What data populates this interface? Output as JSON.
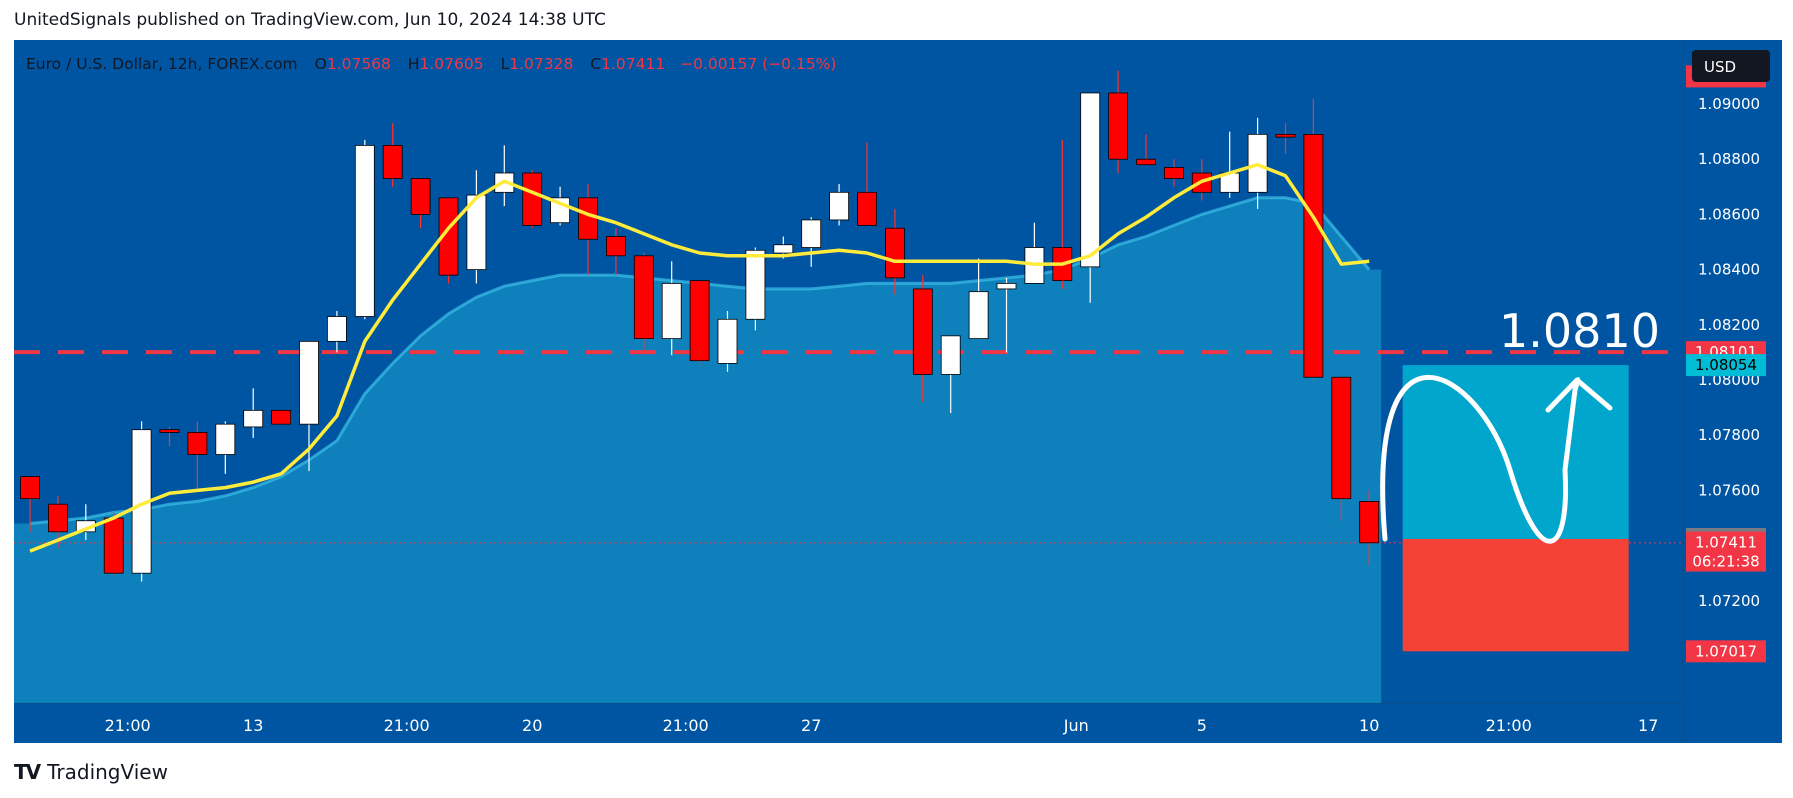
{
  "header": {
    "byline": "UnitedSignals published on TradingView.com, Jun 10, 2024 14:38 UTC"
  },
  "footer": {
    "logo_mark": "TV",
    "brand": "TradingView"
  },
  "legend": {
    "symbol": "Euro / U.S. Dollar, 12h, FOREX.com",
    "o_label": "O",
    "o_value": "1.07568",
    "h_label": "H",
    "h_value": "1.07605",
    "l_label": "L",
    "l_value": "1.07328",
    "c_label": "C",
    "c_value": "1.07411",
    "change": "−0.00157 (−0.15%)"
  },
  "currency_button": "USD",
  "annotation": {
    "target_text": "1.0810"
  },
  "price_tags": {
    "p1": "1.08101",
    "p2": "1.08054",
    "p3": "1.07424",
    "p4": "1.07411",
    "countdown": "06:21:38",
    "p5": "1.07017"
  },
  "colors": {
    "background": "#0055a3",
    "bull": "#ffffff",
    "bear": "#ff0000",
    "ma_line": "#ffeb3b",
    "band_fill": "#1aa6d1",
    "target_box": "#00a6cc",
    "stop_box": "#f44336",
    "dashed_level": "#f23645"
  },
  "chart_data": {
    "type": "candlestick",
    "y_axis": {
      "range": [
        1.0696,
        1.0918
      ],
      "ticks": [
        "1.09000",
        "1.08800",
        "1.08600",
        "1.08400",
        "1.08200",
        "1.08000",
        "1.07800",
        "1.07600",
        "1.07200"
      ]
    },
    "x_axis": {
      "ticks": [
        {
          "label": "21:00",
          "bar": 3.5
        },
        {
          "label": "13",
          "bar": 8
        },
        {
          "label": "21:00",
          "bar": 13.5
        },
        {
          "label": "20",
          "bar": 18
        },
        {
          "label": "21:00",
          "bar": 23.5
        },
        {
          "label": "27",
          "bar": 28
        },
        {
          "label": "Jun",
          "bar": 37.5
        },
        {
          "label": "5",
          "bar": 42
        },
        {
          "label": "10",
          "bar": 48
        },
        {
          "label": "21:00",
          "bar": 53
        },
        {
          "label": "17",
          "bar": 58
        }
      ]
    },
    "candles": [
      {
        "o": 1.0765,
        "h": 1.0765,
        "l": 1.0745,
        "c": 1.0757
      },
      {
        "o": 1.0755,
        "h": 1.0758,
        "l": 1.0739,
        "c": 1.0745
      },
      {
        "o": 1.0745,
        "h": 1.0755,
        "l": 1.0742,
        "c": 1.0749
      },
      {
        "o": 1.075,
        "h": 1.0752,
        "l": 1.0729,
        "c": 1.073
      },
      {
        "o": 1.073,
        "h": 1.0785,
        "l": 1.0727,
        "c": 1.0782
      },
      {
        "o": 1.0782,
        "h": 1.0783,
        "l": 1.0776,
        "c": 1.0781
      },
      {
        "o": 1.0781,
        "h": 1.0785,
        "l": 1.076,
        "c": 1.0773
      },
      {
        "o": 1.0773,
        "h": 1.0785,
        "l": 1.0766,
        "c": 1.0784
      },
      {
        "o": 1.0783,
        "h": 1.0797,
        "l": 1.0779,
        "c": 1.0789
      },
      {
        "o": 1.0789,
        "h": 1.0789,
        "l": 1.0784,
        "c": 1.0784
      },
      {
        "o": 1.0784,
        "h": 1.0812,
        "l": 1.0767,
        "c": 1.0814
      },
      {
        "o": 1.0814,
        "h": 1.0825,
        "l": 1.081,
        "c": 1.0823
      },
      {
        "o": 1.0823,
        "h": 1.0887,
        "l": 1.0822,
        "c": 1.0885
      },
      {
        "o": 1.0885,
        "h": 1.0893,
        "l": 1.087,
        "c": 1.0873
      },
      {
        "o": 1.0873,
        "h": 1.0873,
        "l": 1.0855,
        "c": 1.086
      },
      {
        "o": 1.0866,
        "h": 1.0866,
        "l": 1.0835,
        "c": 1.0838
      },
      {
        "o": 1.084,
        "h": 1.0876,
        "l": 1.0835,
        "c": 1.0867
      },
      {
        "o": 1.0868,
        "h": 1.0885,
        "l": 1.0863,
        "c": 1.0875
      },
      {
        "o": 1.0875,
        "h": 1.0876,
        "l": 1.0855,
        "c": 1.0856
      },
      {
        "o": 1.0857,
        "h": 1.087,
        "l": 1.0856,
        "c": 1.0866
      },
      {
        "o": 1.0866,
        "h": 1.0871,
        "l": 1.0838,
        "c": 1.0851
      },
      {
        "o": 1.0852,
        "h": 1.0855,
        "l": 1.0838,
        "c": 1.0845
      },
      {
        "o": 1.0845,
        "h": 1.0846,
        "l": 1.081,
        "c": 1.0815
      },
      {
        "o": 1.0815,
        "h": 1.0843,
        "l": 1.0809,
        "c": 1.0835
      },
      {
        "o": 1.0836,
        "h": 1.0836,
        "l": 1.0805,
        "c": 1.0807
      },
      {
        "o": 1.0806,
        "h": 1.0825,
        "l": 1.0803,
        "c": 1.0822
      },
      {
        "o": 1.0822,
        "h": 1.0848,
        "l": 1.0818,
        "c": 1.0847
      },
      {
        "o": 1.0846,
        "h": 1.0852,
        "l": 1.0844,
        "c": 1.0849
      },
      {
        "o": 1.0848,
        "h": 1.0859,
        "l": 1.0841,
        "c": 1.0858
      },
      {
        "o": 1.0858,
        "h": 1.0871,
        "l": 1.0856,
        "c": 1.0868
      },
      {
        "o": 1.0868,
        "h": 1.0886,
        "l": 1.0856,
        "c": 1.0856
      },
      {
        "o": 1.0855,
        "h": 1.0862,
        "l": 1.0831,
        "c": 1.0837
      },
      {
        "o": 1.0833,
        "h": 1.0838,
        "l": 1.0792,
        "c": 1.0802
      },
      {
        "o": 1.0802,
        "h": 1.0816,
        "l": 1.0788,
        "c": 1.0816
      },
      {
        "o": 1.0815,
        "h": 1.0844,
        "l": 1.0815,
        "c": 1.0832
      },
      {
        "o": 1.0833,
        "h": 1.0837,
        "l": 1.081,
        "c": 1.0835
      },
      {
        "o": 1.0835,
        "h": 1.0857,
        "l": 1.0836,
        "c": 1.0848
      },
      {
        "o": 1.0848,
        "h": 1.0887,
        "l": 1.0833,
        "c": 1.0836
      },
      {
        "o": 1.0841,
        "h": 1.0904,
        "l": 1.0828,
        "c": 1.0904
      },
      {
        "o": 1.0904,
        "h": 1.0912,
        "l": 1.0875,
        "c": 1.088
      },
      {
        "o": 1.088,
        "h": 1.0889,
        "l": 1.0878,
        "c": 1.0878
      },
      {
        "o": 1.0877,
        "h": 1.088,
        "l": 1.087,
        "c": 1.0873
      },
      {
        "o": 1.0875,
        "h": 1.088,
        "l": 1.0865,
        "c": 1.0868
      },
      {
        "o": 1.0868,
        "h": 1.089,
        "l": 1.0866,
        "c": 1.0875
      },
      {
        "o": 1.0868,
        "h": 1.0895,
        "l": 1.0862,
        "c": 1.0889
      },
      {
        "o": 1.0889,
        "h": 1.0893,
        "l": 1.0882,
        "c": 1.0888
      },
      {
        "o": 1.0889,
        "h": 1.0902,
        "l": 1.08,
        "c": 1.0801
      },
      {
        "o": 1.0801,
        "h": 1.0801,
        "l": 1.0749,
        "c": 1.0757
      },
      {
        "o": 1.0756,
        "h": 1.076,
        "l": 1.0733,
        "c": 1.0741
      }
    ],
    "moving_average": [
      1.0738,
      1.0742,
      1.0746,
      1.075,
      1.0755,
      1.0759,
      1.076,
      1.0761,
      1.0763,
      1.0766,
      1.0775,
      1.0787,
      1.0814,
      1.0829,
      1.0842,
      1.0855,
      1.0866,
      1.0872,
      1.0868,
      1.0864,
      1.086,
      1.0857,
      1.0853,
      1.0849,
      1.0846,
      1.0845,
      1.0845,
      1.0845,
      1.0846,
      1.0847,
      1.0846,
      1.0843,
      1.0843,
      1.0843,
      1.0843,
      1.0843,
      1.0842,
      1.0842,
      1.0845,
      1.0853,
      1.0859,
      1.0866,
      1.0872,
      1.0875,
      1.0878,
      1.0874,
      1.0859,
      1.0842,
      1.0843
    ],
    "band_upper": [
      1.0748,
      1.0749,
      1.075,
      1.0752,
      1.0753,
      1.0755,
      1.0756,
      1.0758,
      1.0761,
      1.0765,
      1.0771,
      1.0778,
      1.0795,
      1.0806,
      1.0816,
      1.0824,
      1.083,
      1.0834,
      1.0836,
      1.0838,
      1.0838,
      1.0838,
      1.0837,
      1.0836,
      1.0835,
      1.0834,
      1.0833,
      1.0833,
      1.0833,
      1.0834,
      1.0835,
      1.0835,
      1.0835,
      1.0835,
      1.0836,
      1.0837,
      1.0838,
      1.084,
      1.0844,
      1.0849,
      1.0852,
      1.0856,
      1.086,
      1.0863,
      1.0866,
      1.0866,
      1.0864,
      1.0852,
      1.084
    ]
  },
  "level_line": 1.08101,
  "trade_setup": {
    "entry": 1.07424,
    "target": 1.08054,
    "stop": 1.07017,
    "start_bar": 49.2,
    "end_bar": 57.3
  }
}
